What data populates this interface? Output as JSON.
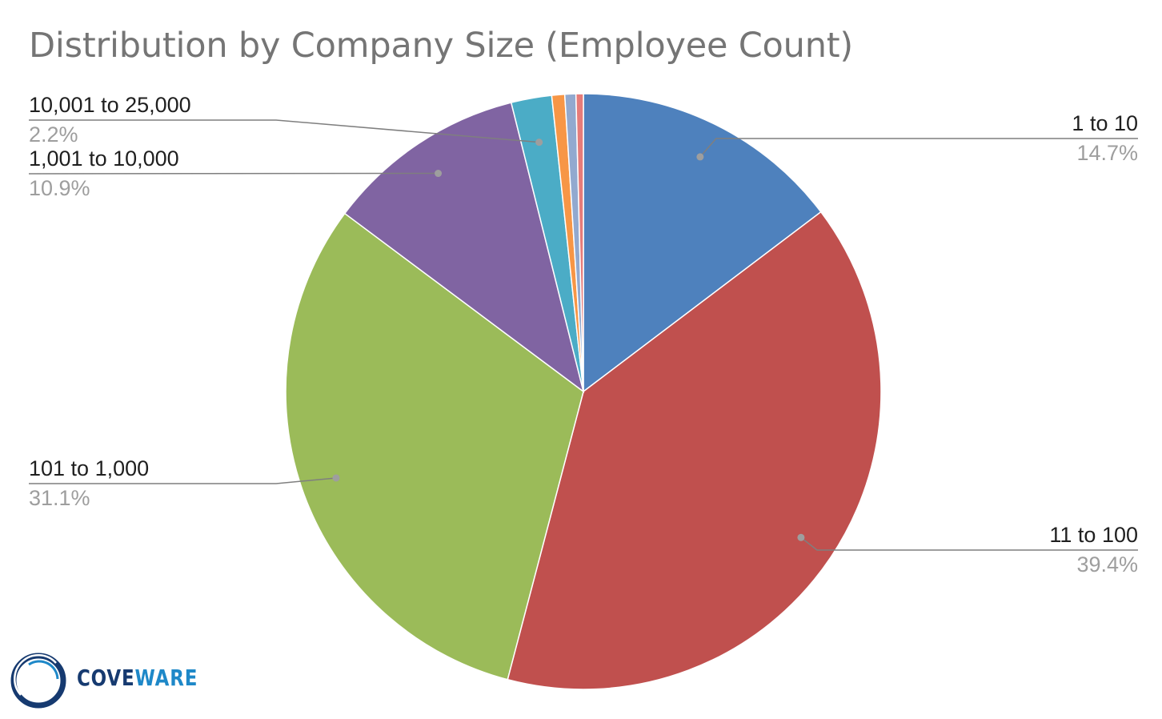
{
  "chart_data": {
    "type": "pie",
    "title": "Distribution by Company Size (Employee Count)",
    "slices": [
      {
        "label": "1 to 10",
        "value": 14.7,
        "value_label": "14.7%",
        "color": "#4e81bd",
        "labeled": true
      },
      {
        "label": "11 to 100",
        "value": 39.4,
        "value_label": "39.4%",
        "color": "#c0504e",
        "labeled": true
      },
      {
        "label": "101 to 1,000",
        "value": 31.1,
        "value_label": "31.1%",
        "color": "#9bbb59",
        "labeled": true
      },
      {
        "label": "1,001 to 10,000",
        "value": 10.9,
        "value_label": "10.9%",
        "color": "#8064a2",
        "labeled": true
      },
      {
        "label": "10,001 to 25,000",
        "value": 2.2,
        "value_label": "2.2%",
        "color": "#4bacc6",
        "labeled": true
      },
      {
        "label": "",
        "value": 0.7,
        "value_label": "",
        "color": "#f79646",
        "labeled": false
      },
      {
        "label": "",
        "value": 0.6,
        "value_label": "",
        "color": "#92a9cf",
        "labeled": false
      },
      {
        "label": "",
        "value": 0.4,
        "value_label": "",
        "color": "#e67c7a",
        "labeled": false
      }
    ],
    "start_angle": "12 o'clock",
    "direction": "clockwise",
    "legend": "none"
  },
  "logo": {
    "text_part1": "COVE",
    "text_part2": "WARE",
    "colors": {
      "dark": "#163a70",
      "light": "#1e88c8"
    }
  }
}
